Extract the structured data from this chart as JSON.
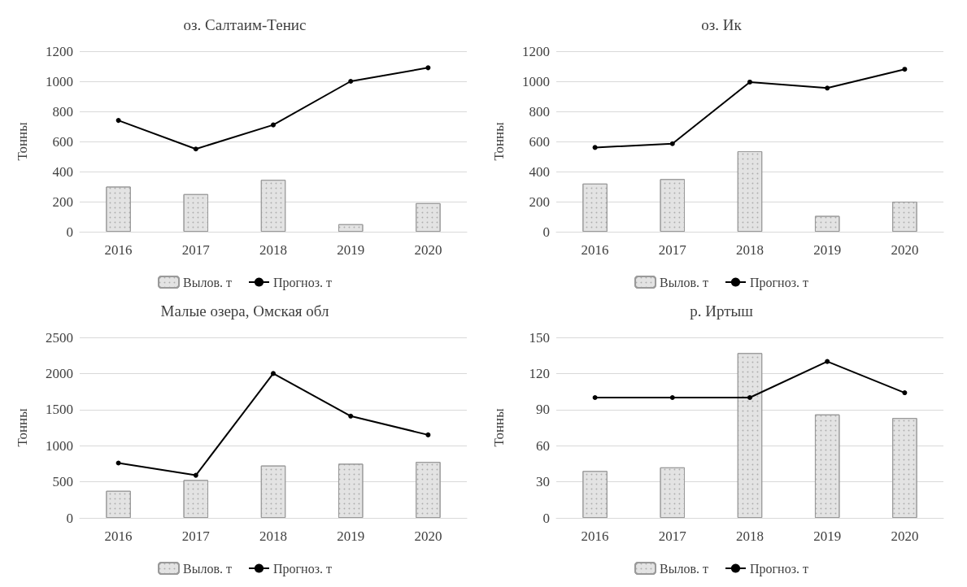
{
  "chart_data": [
    {
      "type": "bar",
      "title": "оз. Салтаим-Тенис",
      "ylabel": "Тонны",
      "categories": [
        "2016",
        "2017",
        "2018",
        "2019",
        "2020"
      ],
      "series": [
        {
          "name": "Вылов. т",
          "color": "#e3e3e3",
          "values": [
            300,
            250,
            345,
            50,
            190
          ]
        },
        {
          "name": "Прогноз. т",
          "type": "line",
          "color": "#000000",
          "values": [
            740,
            550,
            710,
            1000,
            1090
          ]
        }
      ],
      "ylim": [
        0,
        1200
      ],
      "yticks": [
        0,
        200,
        400,
        600,
        800,
        1000,
        1200
      ],
      "grid": "y",
      "legend": "bottom",
      "marker": "circle"
    },
    {
      "type": "bar",
      "title": "оз. Ик",
      "ylabel": "Тонны",
      "categories": [
        "2016",
        "2017",
        "2018",
        "2019",
        "2020"
      ],
      "series": [
        {
          "name": "Вылов. т",
          "color": "#e3e3e3",
          "values": [
            320,
            350,
            535,
            105,
            200
          ]
        },
        {
          "name": "Прогноз. т",
          "type": "line",
          "color": "#000000",
          "values": [
            560,
            585,
            995,
            955,
            1080
          ]
        }
      ],
      "ylim": [
        0,
        1200
      ],
      "yticks": [
        0,
        200,
        400,
        600,
        800,
        1000,
        1200
      ],
      "grid": "y",
      "legend": "bottom",
      "marker": "circle"
    },
    {
      "type": "bar",
      "title": "Малые озера, Омская обл",
      "ylabel": "Тонны",
      "categories": [
        "2016",
        "2017",
        "2018",
        "2019",
        "2020"
      ],
      "series": [
        {
          "name": "Вылов. т",
          "color": "#e3e3e3",
          "values": [
            375,
            525,
            725,
            750,
            775
          ]
        },
        {
          "name": "Прогноз. т",
          "type": "line",
          "color": "#000000",
          "values": [
            760,
            590,
            2000,
            1410,
            1150
          ]
        }
      ],
      "ylim": [
        0,
        2500
      ],
      "yticks": [
        0,
        500,
        1000,
        1500,
        2000,
        2500
      ],
      "grid": "y",
      "legend": "bottom",
      "marker": "circle"
    },
    {
      "type": "bar",
      "title": "р. Иртыш",
      "ylabel": "Тонны",
      "categories": [
        "2016",
        "2017",
        "2018",
        "2019",
        "2020"
      ],
      "series": [
        {
          "name": "Вылов. т",
          "color": "#e3e3e3",
          "values": [
            39,
            42,
            137,
            86,
            83
          ]
        },
        {
          "name": "Прогноз. т",
          "type": "line",
          "color": "#000000",
          "values": [
            100,
            100,
            100,
            130,
            104
          ]
        }
      ],
      "ylim": [
        0,
        150
      ],
      "yticks": [
        0,
        30,
        60,
        90,
        120,
        150
      ],
      "grid": "y",
      "legend": "bottom",
      "marker": "circle"
    }
  ]
}
